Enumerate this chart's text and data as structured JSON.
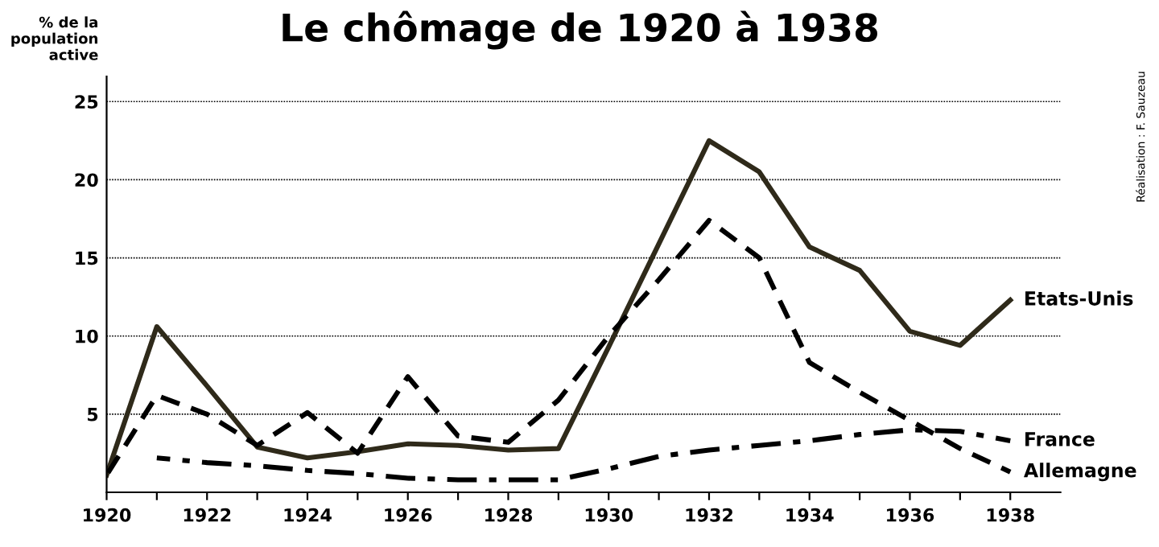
{
  "chart_data": {
    "type": "line",
    "title": "Le chômage de 1920 à 1938",
    "ylabel": "% de la\npopulation\nactive",
    "x": [
      1920,
      1921,
      1922,
      1923,
      1924,
      1925,
      1926,
      1927,
      1928,
      1929,
      1930,
      1931,
      1932,
      1933,
      1934,
      1935,
      1936,
      1937,
      1938
    ],
    "series": [
      {
        "name": "Etats-Unis",
        "color": "#2f2a1a",
        "line_style": "solid",
        "values": [
          1.1,
          10.6,
          6.8,
          2.9,
          2.2,
          2.6,
          3.1,
          3.0,
          2.7,
          2.8,
          9.3,
          15.9,
          22.5,
          20.5,
          15.7,
          14.2,
          10.3,
          9.4,
          12.3
        ]
      },
      {
        "name": "Allemagne",
        "color": "#000000",
        "line_style": "dashed",
        "values": [
          1.1,
          6.2,
          5.0,
          3.0,
          5.1,
          2.5,
          7.4,
          3.6,
          3.2,
          5.9,
          10.0,
          13.6,
          17.4,
          15.0,
          8.3,
          6.4,
          4.6,
          2.8,
          1.3
        ]
      },
      {
        "name": "France",
        "color": "#000000",
        "line_style": "dashdot",
        "values": [
          null,
          2.2,
          1.9,
          1.7,
          1.4,
          1.2,
          0.9,
          0.8,
          0.8,
          0.8,
          1.5,
          2.3,
          2.7,
          3.0,
          3.3,
          3.7,
          4.0,
          3.9,
          3.3
        ]
      }
    ],
    "xlim": [
      1920,
      1939
    ],
    "ylim": [
      0,
      26.6
    ],
    "xticks": [
      1920,
      {
        "value": 1921,
        "label": null
      },
      1922,
      {
        "value": 1923,
        "label": null
      },
      1924,
      {
        "value": 1925,
        "label": null
      },
      1926,
      {
        "value": 1927,
        "label": null
      },
      1928,
      {
        "value": 1929,
        "label": null
      },
      1930,
      {
        "value": 1931,
        "label": null
      },
      1932,
      {
        "value": 1933,
        "label": null
      },
      1934,
      {
        "value": 1935,
        "label": null
      },
      1936,
      {
        "value": 1937,
        "label": null
      },
      1938
    ],
    "yticks": [
      5,
      10,
      15,
      20,
      25
    ],
    "grid": "y",
    "legend": false,
    "marker": "none",
    "annotations": [
      "Réalisation : F. Sauzeau"
    ]
  }
}
